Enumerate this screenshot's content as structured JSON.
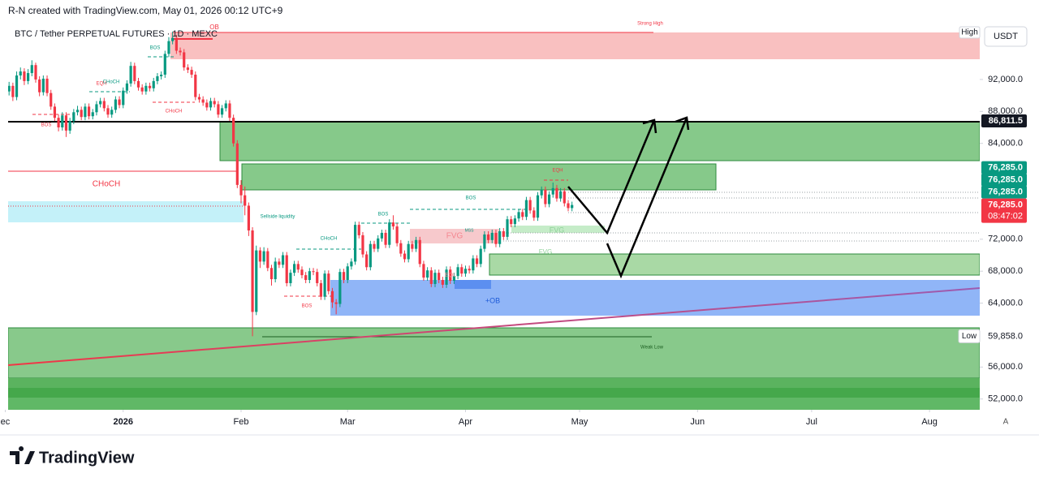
{
  "header": {
    "credit": "R-N created with TradingView.com, May 01, 2026 00:12 UTC+9",
    "currency": "USDT",
    "range_high": "High",
    "auto_scale": "A",
    "logo": "TradingView"
  },
  "chart_data": {
    "type": "candlestick",
    "title": "BTC / Tether PERPETUAL FUTURES · 1D · MEXC",
    "up_color": "#089981",
    "down_color": "#f23645",
    "open": [
      89900,
      90500,
      91200,
      89800,
      92500,
      93000,
      91800,
      92800,
      93800,
      92000,
      90400,
      92100,
      90300,
      88600,
      87200,
      86000,
      87500,
      85600,
      86800,
      87900,
      88200,
      87300,
      88600,
      87400,
      87900,
      88900,
      89300,
      88400,
      87600,
      88200,
      89500,
      88800,
      90600,
      91500,
      93700,
      91800,
      91000,
      90500,
      91200,
      90900,
      91800,
      92400,
      92600,
      95200,
      96800,
      97200,
      95600,
      95400,
      93500,
      93200,
      92600,
      89800,
      89500,
      89100,
      88500,
      89300,
      88900,
      87600,
      88400,
      89000,
      87200,
      84000,
      78800,
      77500,
      76200,
      73100,
      62900,
      70600,
      69200,
      70500,
      68400,
      67000,
      69200,
      68800,
      70000,
      66500,
      67800,
      68900,
      68200,
      67500,
      66900,
      68000,
      67900,
      66500,
      64800,
      67700,
      65500,
      64100,
      63900,
      67900,
      66900,
      68600,
      69200,
      73800,
      72500,
      70100,
      68500,
      71400,
      70800,
      72100,
      72800,
      71300,
      74100,
      73600,
      71500,
      70200,
      69500,
      71400,
      70800,
      71900,
      68900,
      67200,
      68100,
      66400,
      67800,
      66900,
      66300,
      68200,
      66800,
      67400,
      68500,
      67700,
      68300,
      68100,
      69600,
      68900,
      70800,
      72600,
      71900,
      72800,
      71400,
      73000,
      72300,
      74500,
      73900,
      74600,
      75400,
      74800,
      76900,
      75600,
      74700,
      77500,
      78200,
      76400,
      77600,
      78400,
      77100,
      78000,
      76500,
      75900
    ],
    "high": [
      91000,
      91700,
      91600,
      93000,
      93500,
      93400,
      93300,
      94400,
      94100,
      92400,
      92500,
      92500,
      90700,
      89000,
      87600,
      87900,
      87900,
      87200,
      88300,
      88700,
      88600,
      89000,
      89000,
      88300,
      89300,
      89700,
      89700,
      88800,
      88600,
      89900,
      89900,
      91000,
      91900,
      94200,
      94100,
      92200,
      91400,
      91600,
      91600,
      92200,
      92800,
      93000,
      95600,
      97300,
      98000,
      97600,
      96000,
      95800,
      93900,
      93600,
      93000,
      90200,
      89900,
      89500,
      89700,
      89700,
      89300,
      88800,
      89400,
      89400,
      87600,
      84400,
      79400,
      78600,
      76600,
      73500,
      71200,
      71000,
      71000,
      70900,
      68800,
      69700,
      69600,
      70400,
      70400,
      68200,
      69300,
      69300,
      68600,
      67900,
      68400,
      68400,
      68300,
      66900,
      68100,
      68100,
      65900,
      64500,
      68300,
      68300,
      69000,
      69600,
      74200,
      74200,
      72900,
      70500,
      71800,
      71800,
      72500,
      73200,
      73200,
      74500,
      75000,
      74000,
      71900,
      70600,
      71800,
      71800,
      72300,
      72300,
      69300,
      68500,
      68500,
      68200,
      68200,
      67300,
      68600,
      68600,
      67800,
      68900,
      68900,
      68700,
      68700,
      70000,
      70000,
      71200,
      73000,
      73000,
      73200,
      73200,
      73400,
      73400,
      74900,
      74900,
      75000,
      75800,
      75800,
      77300,
      77300,
      76000,
      77900,
      78600,
      78600,
      78000,
      79100,
      78800,
      78400,
      78400,
      76900,
      76700
    ],
    "low": [
      89400,
      90000,
      89300,
      89400,
      92000,
      91300,
      91400,
      92400,
      91600,
      89900,
      90000,
      89900,
      88200,
      86800,
      85500,
      85600,
      84800,
      85200,
      86400,
      87500,
      86900,
      86900,
      87000,
      87000,
      87500,
      88500,
      88000,
      87200,
      87200,
      87800,
      88400,
      88400,
      90200,
      91100,
      91400,
      90600,
      90100,
      90100,
      90500,
      90500,
      91400,
      92000,
      92200,
      94800,
      96400,
      95200,
      95000,
      93100,
      92800,
      92200,
      89400,
      89100,
      88700,
      88100,
      88100,
      88500,
      87200,
      87200,
      88000,
      86800,
      83600,
      78400,
      76500,
      75000,
      72400,
      59858,
      62500,
      68400,
      68800,
      68000,
      66200,
      66600,
      68400,
      68400,
      66100,
      66100,
      67400,
      67800,
      67100,
      66500,
      66500,
      67500,
      66100,
      64400,
      64400,
      65100,
      63400,
      62600,
      63500,
      66500,
      66500,
      68200,
      68800,
      72100,
      69700,
      68100,
      68100,
      70400,
      70400,
      71700,
      70900,
      70900,
      73200,
      71100,
      69800,
      69100,
      69100,
      70400,
      70400,
      68500,
      66800,
      66800,
      66000,
      66000,
      66500,
      65900,
      65900,
      66400,
      66400,
      67000,
      67300,
      67300,
      67700,
      67700,
      68500,
      68500,
      70400,
      71500,
      71500,
      71000,
      71000,
      71900,
      71900,
      73500,
      73500,
      74200,
      74400,
      74400,
      75200,
      74300,
      74300,
      77100,
      76000,
      76000,
      77200,
      76700,
      76700,
      76100,
      75500,
      75500
    ],
    "close": [
      90500,
      91200,
      89800,
      92500,
      93000,
      91800,
      92800,
      93800,
      92000,
      90400,
      92100,
      90300,
      88600,
      87200,
      86000,
      87500,
      85600,
      86800,
      87900,
      88200,
      87300,
      88600,
      87400,
      87900,
      88900,
      89300,
      88400,
      87600,
      88200,
      89500,
      88800,
      90600,
      91500,
      93700,
      91800,
      91000,
      90500,
      91200,
      90900,
      91800,
      92400,
      92600,
      95200,
      96800,
      97200,
      95600,
      95400,
      93500,
      93200,
      92600,
      89800,
      89500,
      89100,
      88500,
      89300,
      88900,
      87600,
      88400,
      89000,
      87200,
      84000,
      78800,
      77500,
      76200,
      73100,
      62900,
      70600,
      69200,
      70500,
      68400,
      67000,
      69200,
      68800,
      70000,
      66500,
      67800,
      68900,
      68200,
      67500,
      66900,
      68000,
      67900,
      66500,
      64800,
      67700,
      65500,
      64100,
      63900,
      67900,
      66900,
      68600,
      69200,
      73800,
      72500,
      70100,
      68500,
      71400,
      70800,
      72100,
      72800,
      71300,
      74100,
      73600,
      71500,
      70200,
      69500,
      71400,
      70800,
      71900,
      68900,
      67200,
      68100,
      66400,
      67800,
      66900,
      66300,
      68200,
      66800,
      67400,
      68500,
      67700,
      68300,
      68100,
      69600,
      68900,
      70800,
      72600,
      71900,
      72800,
      71400,
      73000,
      72300,
      74500,
      73900,
      74600,
      75400,
      74800,
      76900,
      75600,
      74700,
      77500,
      78200,
      76400,
      77600,
      78400,
      77100,
      78000,
      76500,
      75900,
      76285
    ],
    "xlim": [
      0.75,
      256.2
    ],
    "xticks": [
      {
        "value": 0,
        "label": "ec"
      },
      {
        "value": 31,
        "label": "2026"
      },
      {
        "value": 62,
        "label": "Feb"
      },
      {
        "value": 90,
        "label": "Mar"
      },
      {
        "value": 121,
        "label": "Apr"
      },
      {
        "value": 151,
        "label": "May"
      },
      {
        "value": 182,
        "label": "Jun"
      },
      {
        "value": 212,
        "label": "Jul"
      },
      {
        "value": 243,
        "label": "Aug"
      }
    ],
    "ylim": [
      50650,
      98900
    ],
    "yticks": [
      {
        "value": 52000,
        "label": "52,000.0"
      },
      {
        "value": 56000,
        "label": "56,000.0"
      },
      {
        "value": 64000,
        "label": "64,000.0"
      },
      {
        "value": 68000,
        "label": "68,000.0"
      },
      {
        "value": 72000,
        "label": "72,000.0"
      },
      {
        "value": 84000,
        "label": "84,000.0"
      },
      {
        "value": 88000,
        "label": "88,000.0"
      },
      {
        "value": 92000,
        "label": "92,000.0"
      }
    ],
    "price_labels": [
      {
        "value": 86811.5,
        "label": "86,811.5",
        "color": "#131722"
      },
      {
        "value": 76285,
        "label": "76,285.0",
        "color": "#089981"
      },
      {
        "value": 76285,
        "label": "76,285.0",
        "color": "#089981"
      },
      {
        "value": 76285,
        "label": "76,285.0",
        "color": "#089981"
      },
      {
        "value": 76285,
        "label": "76,285.0",
        "color": "#f23645",
        "countdown": "08:47:02"
      },
      {
        "value": 59858,
        "label": "59,858.0",
        "tag": "Low"
      }
    ],
    "annotations": [
      "Strong High",
      "OB",
      "BOS",
      "EQH",
      "CHoCH",
      "CHoCH",
      "BOS",
      "CHoCH",
      "Sellside liquidity",
      "EQH",
      "BOS",
      "BOS",
      "CHoCH",
      "FVG",
      "MSS",
      "FVG",
      "FVG",
      "BOS",
      "EQL",
      "+OB",
      "Weak Low"
    ]
  }
}
